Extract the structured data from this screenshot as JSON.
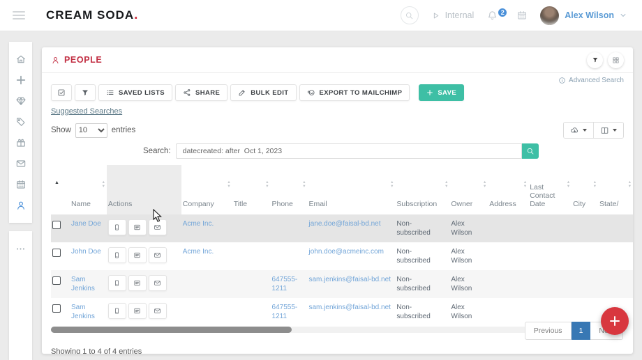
{
  "topbar": {
    "logo_text": "CREAM SODA",
    "logo_dot": ".",
    "internal_label": "Internal",
    "notification_count": "2",
    "user_name": "Alex Wilson"
  },
  "sidebar": {
    "items": [
      {
        "name": "sidebar-item-home",
        "icon": "home-icon",
        "active": false
      },
      {
        "name": "sidebar-item-add",
        "icon": "plus-icon",
        "active": false
      },
      {
        "name": "sidebar-item-deals",
        "icon": "diamond-icon",
        "active": false
      },
      {
        "name": "sidebar-item-tags",
        "icon": "tag-icon",
        "active": false
      },
      {
        "name": "sidebar-item-products",
        "icon": "gift-icon",
        "active": false
      },
      {
        "name": "sidebar-item-mail",
        "icon": "mail-icon",
        "active": false
      },
      {
        "name": "sidebar-item-calendar",
        "icon": "calendar-icon",
        "active": false
      },
      {
        "name": "sidebar-item-people",
        "icon": "person-icon",
        "active": true
      },
      {
        "name": "sidebar-item-more",
        "icon": "ellipsis-icon",
        "active": false
      }
    ]
  },
  "panel": {
    "title": "PEOPLE",
    "header_actions": [
      {
        "name": "filter-view-button",
        "icon": "filter-icon"
      },
      {
        "name": "grid-view-button",
        "icon": "grid-icon"
      }
    ],
    "toolbar": {
      "buttons": [
        {
          "name": "select-all-button",
          "icon": "checkbox-icon",
          "label": ""
        },
        {
          "name": "filter-button",
          "icon": "funnel-icon",
          "label": ""
        },
        {
          "name": "saved-lists-button",
          "icon": "list-icon",
          "label": "SAVED LISTS"
        },
        {
          "name": "share-button",
          "icon": "share-icon",
          "label": "SHARE"
        },
        {
          "name": "bulk-edit-button",
          "icon": "pencil-icon",
          "label": "BULK EDIT"
        },
        {
          "name": "export-to-mailchimp-button",
          "icon": "mailchimp-icon",
          "label": "EXPORT TO MAILCHIMP"
        }
      ],
      "save_label": "SAVE",
      "advanced_search_label": "Advanced Search"
    },
    "suggested_searches_label": "Suggested Searches",
    "length_control": {
      "show_label": "Show",
      "page_size": "10",
      "entries_label": "entries"
    },
    "export_controls": [
      {
        "name": "download-dropdown-button",
        "icon": "cloud-download-icon"
      },
      {
        "name": "columns-dropdown-button",
        "icon": "columns-icon"
      }
    ],
    "search": {
      "label": "Search:",
      "value": "datecreated: after  Oct 1, 2023"
    },
    "table": {
      "columns": [
        {
          "key": "select",
          "label": "",
          "sort": "asc"
        },
        {
          "key": "name",
          "label": "Name",
          "sort": "both"
        },
        {
          "key": "actions",
          "label": "Actions",
          "sort": "none"
        },
        {
          "key": "company",
          "label": "Company",
          "sort": "both"
        },
        {
          "key": "title",
          "label": "Title",
          "sort": "both"
        },
        {
          "key": "phone",
          "label": "Phone",
          "sort": "both"
        },
        {
          "key": "email",
          "label": "Email",
          "sort": "both"
        },
        {
          "key": "subscription",
          "label": "Subscription",
          "sort": "both"
        },
        {
          "key": "owner",
          "label": "Owner",
          "sort": "both"
        },
        {
          "key": "address",
          "label": "Address",
          "sort": "both"
        },
        {
          "key": "last_contact_date",
          "label": "Last Contact Date",
          "sort": "both"
        },
        {
          "key": "city",
          "label": "City",
          "sort": "both"
        },
        {
          "key": "state",
          "label": "State/",
          "sort": "both"
        }
      ],
      "row_actions": [
        {
          "name": "call-action-button",
          "icon": "phone-icon"
        },
        {
          "name": "note-action-button",
          "icon": "note-icon"
        },
        {
          "name": "email-action-button",
          "icon": "envelope-icon"
        }
      ],
      "rows": [
        {
          "name": "Jane Doe",
          "company": "Acme Inc.",
          "title": "",
          "phone": "",
          "email": "jane.doe@faisal-bd.net",
          "subscription": "Non-subscribed",
          "owner": "Alex Wilson",
          "address": "",
          "last_contact_date": "",
          "city": "",
          "state": "",
          "highlighted": true
        },
        {
          "name": "John Doe",
          "company": "Acme Inc.",
          "title": "",
          "phone": "",
          "email": "john.doe@acmeinc.com",
          "subscription": "Non-subscribed",
          "owner": "Alex Wilson",
          "address": "",
          "last_contact_date": "",
          "city": "",
          "state": "",
          "highlighted": false
        },
        {
          "name": "Sam Jenkins",
          "company": "",
          "title": "",
          "phone": "647555-1211",
          "email": "sam.jenkins@faisal-bd.net",
          "subscription": "Non-subscribed",
          "owner": "Alex Wilson",
          "address": "",
          "last_contact_date": "",
          "city": "",
          "state": "",
          "highlighted": false
        },
        {
          "name": "Sam Jenkins",
          "company": "",
          "title": "",
          "phone": "647555-1211",
          "email": "sam.jenkins@faisal-bd.net",
          "subscription": "Non-subscribed",
          "owner": "Alex Wilson",
          "address": "",
          "last_contact_date": "",
          "city": "",
          "state": "",
          "highlighted": false
        }
      ]
    },
    "footer": {
      "showing_text": "Showing 1 to 4 of 4 entries",
      "previous_label": "Previous",
      "current_page": "1",
      "next_label": "Next"
    }
  },
  "colors": {
    "accent_red": "#d8373f",
    "accent_teal": "#3ebfa5",
    "link_blue": "#72a5d8",
    "active_page_blue": "#3878b4",
    "badge_blue": "#4a90d9"
  }
}
